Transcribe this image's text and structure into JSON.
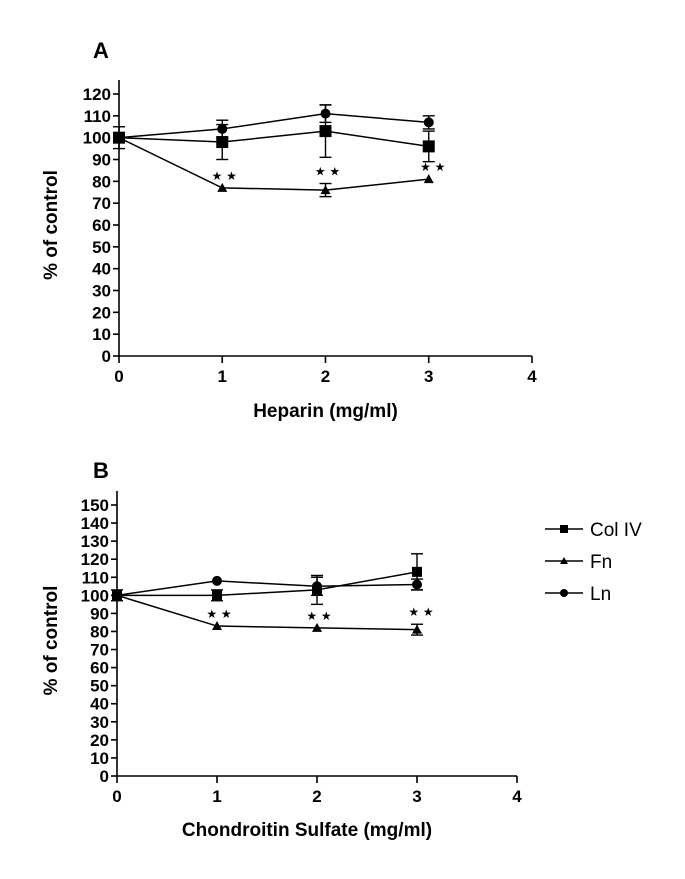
{
  "chart_data": [
    {
      "panel": "A",
      "type": "line",
      "title": "",
      "xlabel": "Heparin (mg/ml)",
      "ylabel": "% of  control",
      "xlim": [
        0,
        4
      ],
      "ylim": [
        0,
        120
      ],
      "xticks": [
        0,
        1,
        2,
        3,
        4
      ],
      "yticks": [
        0,
        10,
        20,
        30,
        40,
        50,
        60,
        70,
        80,
        90,
        100,
        110,
        120
      ],
      "grid": false,
      "x": [
        0,
        1,
        2,
        3
      ],
      "series": [
        {
          "name": "Col IV",
          "marker": "square",
          "values": [
            100,
            98,
            103,
            96
          ],
          "errors": [
            5,
            8,
            12,
            7
          ]
        },
        {
          "name": "Fn",
          "marker": "triangle",
          "values": [
            100,
            77,
            76,
            81
          ],
          "errors": [
            0,
            0,
            3,
            0
          ]
        },
        {
          "name": "Ln",
          "marker": "circle",
          "values": [
            100,
            104,
            111,
            107
          ],
          "errors": [
            0,
            4,
            4,
            3
          ]
        }
      ],
      "annotations": [
        {
          "text": "★★",
          "x": 1,
          "series": "Fn"
        },
        {
          "text": "★★",
          "x": 2,
          "series": "Fn"
        },
        {
          "text": "★★",
          "x": 3,
          "series": "Fn"
        }
      ]
    },
    {
      "panel": "B",
      "type": "line",
      "title": "",
      "xlabel": "Chondroitin Sulfate (mg/ml)",
      "ylabel": "% of  control",
      "xlim": [
        0,
        4
      ],
      "ylim": [
        0,
        150
      ],
      "xticks": [
        0,
        1,
        2,
        3,
        4
      ],
      "yticks": [
        0,
        10,
        20,
        30,
        40,
        50,
        60,
        70,
        80,
        90,
        100,
        110,
        120,
        130,
        140,
        150
      ],
      "grid": false,
      "legend_position": "right",
      "legend": [
        "Col IV",
        "Fn",
        "Ln"
      ],
      "x": [
        0,
        1,
        2,
        3
      ],
      "series": [
        {
          "name": "Col IV",
          "marker": "square",
          "values": [
            100,
            100,
            103,
            113
          ],
          "errors": [
            3,
            3,
            8,
            10
          ]
        },
        {
          "name": "Fn",
          "marker": "triangle",
          "values": [
            100,
            83,
            82,
            81
          ],
          "errors": [
            0,
            0,
            0,
            3
          ]
        },
        {
          "name": "Ln",
          "marker": "circle",
          "values": [
            100,
            108,
            105,
            106
          ],
          "errors": [
            0,
            0,
            5,
            3
          ]
        }
      ],
      "annotations": [
        {
          "text": "★★",
          "x": 1,
          "series": "Fn"
        },
        {
          "text": "★★",
          "x": 2,
          "series": "Fn"
        },
        {
          "text": "★★",
          "x": 3,
          "series": "Fn"
        }
      ]
    }
  ]
}
